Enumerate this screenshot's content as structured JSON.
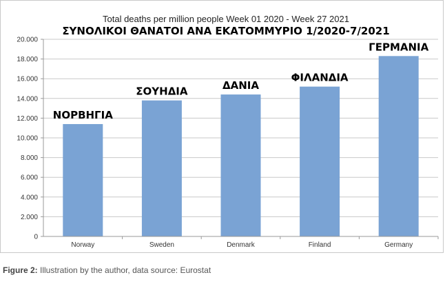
{
  "chart_data": {
    "type": "bar",
    "title": "Total deaths per million people Week 01 2020 - Week 27 2021",
    "subtitle": "ΣΥΝΟΛΙΚΟΙ ΘΑΝΑΤΟΙ ΑΝΑ ΕΚΑΤΟΜΜΥΡΙΟ 1/2020-7/2021",
    "categories": [
      "Norway",
      "Sweden",
      "Denmark",
      "Finland",
      "Germany"
    ],
    "annotations": [
      "ΝΟΡΒΗΓΙΑ",
      "ΣΟΥΗΔΙΑ",
      "ΔΑΝΙΑ",
      "ΦΙΛΑΝΔΙΑ",
      "ΓΕΡΜΑΝΙΑ"
    ],
    "values": [
      11400,
      13800,
      14400,
      15200,
      18300
    ],
    "ylim": [
      0,
      20000
    ],
    "yticks": [
      "0",
      "2.000",
      "4.000",
      "6.000",
      "8.000",
      "10.000",
      "12.000",
      "14.000",
      "16.000",
      "18.000",
      "20.000"
    ],
    "xlabel": "",
    "ylabel": "",
    "grid": true,
    "bar_color": "#7aa3d4",
    "grid_color": "#c8c8c8"
  },
  "caption": {
    "label": "Figure 2:",
    "text": " Illustration by the author, data source: Eurostat"
  }
}
